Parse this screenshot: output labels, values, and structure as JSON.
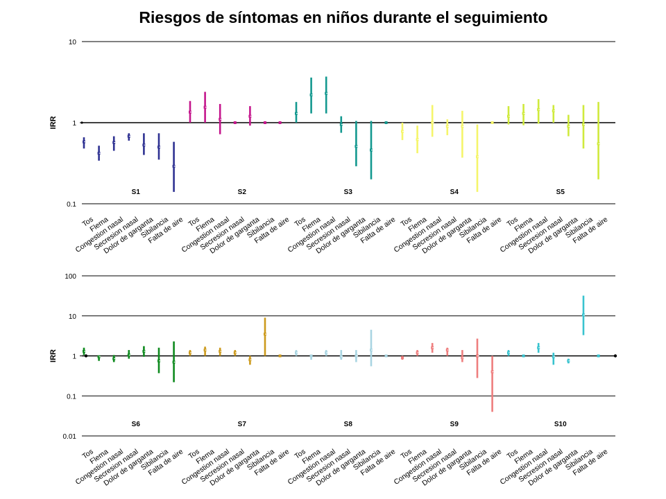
{
  "title": "Riesgos de síntomas en niños durante el seguimiento",
  "chart_data": [
    {
      "type": "error-bar",
      "title": "Riesgos de síntomas en niños durante el seguimiento",
      "ylabel": "IRR",
      "yscale": "log",
      "ylim": [
        0.1,
        10
      ],
      "yticks": [
        "0.1",
        "1",
        "10"
      ],
      "reference_line": 1,
      "categories": [
        "Tos",
        "Flema",
        "Congestion nasal",
        "Secresion nasal",
        "Dolor de garganta",
        "Sibilancia",
        "Falta de aire"
      ],
      "groups": [
        {
          "name": "S1",
          "color": "#2E3192",
          "points": [
            [
              0.58,
              0.48,
              0.66
            ],
            [
              0.42,
              0.34,
              0.52
            ],
            [
              0.57,
              0.45,
              0.68
            ],
            [
              0.68,
              0.6,
              0.74
            ],
            [
              0.53,
              0.4,
              0.74
            ],
            [
              0.5,
              0.35,
              0.74
            ],
            [
              0.29,
              0.14,
              0.58
            ]
          ]
        },
        {
          "name": "S2",
          "color": "#C4168C",
          "points": [
            [
              1.35,
              1.0,
              1.85
            ],
            [
              1.55,
              1.0,
              2.4
            ],
            [
              1.1,
              0.72,
              1.7
            ],
            [
              1.0,
              1.0,
              1.0
            ],
            [
              1.2,
              0.92,
              1.6
            ],
            [
              1.0,
              1.0,
              1.0
            ],
            [
              1.0,
              1.0,
              1.0
            ]
          ]
        },
        {
          "name": "S3",
          "color": "#13988F",
          "points": [
            [
              1.3,
              1.0,
              1.8
            ],
            [
              2.2,
              1.3,
              3.6
            ],
            [
              2.3,
              1.3,
              3.7
            ],
            [
              0.95,
              0.75,
              1.2
            ],
            [
              0.51,
              0.29,
              1.05
            ],
            [
              0.46,
              0.2,
              1.05
            ],
            [
              1.0,
              1.0,
              1.0
            ]
          ]
        },
        {
          "name": "S4",
          "color": "#F5F56A",
          "points": [
            [
              0.78,
              0.61,
              1.0
            ],
            [
              0.62,
              0.42,
              0.92
            ],
            [
              1.0,
              0.67,
              1.65
            ],
            [
              0.9,
              0.7,
              1.1
            ],
            [
              0.9,
              0.37,
              1.4
            ],
            [
              0.38,
              0.14,
              0.95
            ],
            [
              1.0,
              1.0,
              1.0
            ]
          ]
        },
        {
          "name": "S5",
          "color": "#CFEA3C",
          "points": [
            [
              1.2,
              0.95,
              1.6
            ],
            [
              1.3,
              0.93,
              1.7
            ],
            [
              1.45,
              0.97,
              1.95
            ],
            [
              1.4,
              1.0,
              1.65
            ],
            [
              0.9,
              0.68,
              1.25
            ],
            [
              0.95,
              0.48,
              1.65
            ],
            [
              0.55,
              0.2,
              1.8
            ]
          ]
        }
      ]
    },
    {
      "type": "error-bar",
      "ylabel": "IRR",
      "yscale": "log",
      "ylim": [
        0.01,
        100
      ],
      "yticks": [
        "0.01",
        "0.1",
        "1",
        "10",
        "100"
      ],
      "reference_line": 1,
      "categories": [
        "Tos",
        "Flema",
        "Congestion nasal",
        "Secresion nasal",
        "Dolor de garganta",
        "Sibilancia",
        "Falta de aire"
      ],
      "groups": [
        {
          "name": "S6",
          "color": "#0E8A1E",
          "points": [
            [
              1.3,
              1.05,
              1.6
            ],
            [
              0.95,
              0.75,
              1.0
            ],
            [
              0.85,
              0.7,
              1.05
            ],
            [
              1.05,
              0.85,
              1.4
            ],
            [
              1.3,
              0.95,
              1.75
            ],
            [
              0.75,
              0.37,
              1.6
            ],
            [
              0.7,
              0.22,
              2.3
            ]
          ]
        },
        {
          "name": "S7",
          "color": "#CC9A1C",
          "points": [
            [
              1.2,
              1.0,
              1.4
            ],
            [
              1.4,
              1.0,
              1.7
            ],
            [
              1.3,
              1.0,
              1.6
            ],
            [
              1.2,
              1.0,
              1.4
            ],
            [
              0.8,
              0.6,
              1.0
            ],
            [
              3.5,
              1.0,
              9.0
            ],
            [
              1.0,
              1.0,
              1.0
            ]
          ]
        },
        {
          "name": "S8",
          "color": "#A9D5E2",
          "points": [
            [
              1.2,
              1.0,
              1.4
            ],
            [
              1.0,
              0.8,
              1.0
            ],
            [
              1.2,
              1.0,
              1.4
            ],
            [
              0.95,
              0.8,
              1.4
            ],
            [
              1.0,
              0.7,
              1.4
            ],
            [
              1.4,
              0.55,
              4.5
            ],
            [
              1.0,
              1.0,
              1.0
            ]
          ]
        },
        {
          "name": "S9",
          "color": "#EE7E7E",
          "points": [
            [
              0.9,
              0.8,
              1.0
            ],
            [
              1.2,
              1.0,
              1.4
            ],
            [
              1.6,
              1.2,
              2.1
            ],
            [
              1.4,
              1.0,
              1.6
            ],
            [
              0.9,
              0.7,
              1.4
            ],
            [
              1.0,
              0.28,
              2.7
            ],
            [
              0.4,
              0.04,
              1.0
            ]
          ]
        },
        {
          "name": "S10",
          "color": "#38C3CF",
          "points": [
            [
              1.2,
              1.0,
              1.4
            ],
            [
              1.0,
              1.0,
              1.0
            ],
            [
              1.6,
              1.2,
              2.1
            ],
            [
              0.95,
              0.6,
              1.2
            ],
            [
              0.75,
              0.65,
              0.85
            ],
            [
              10.5,
              3.3,
              32.0
            ],
            [
              1.0,
              1.0,
              1.0
            ]
          ]
        }
      ]
    }
  ]
}
